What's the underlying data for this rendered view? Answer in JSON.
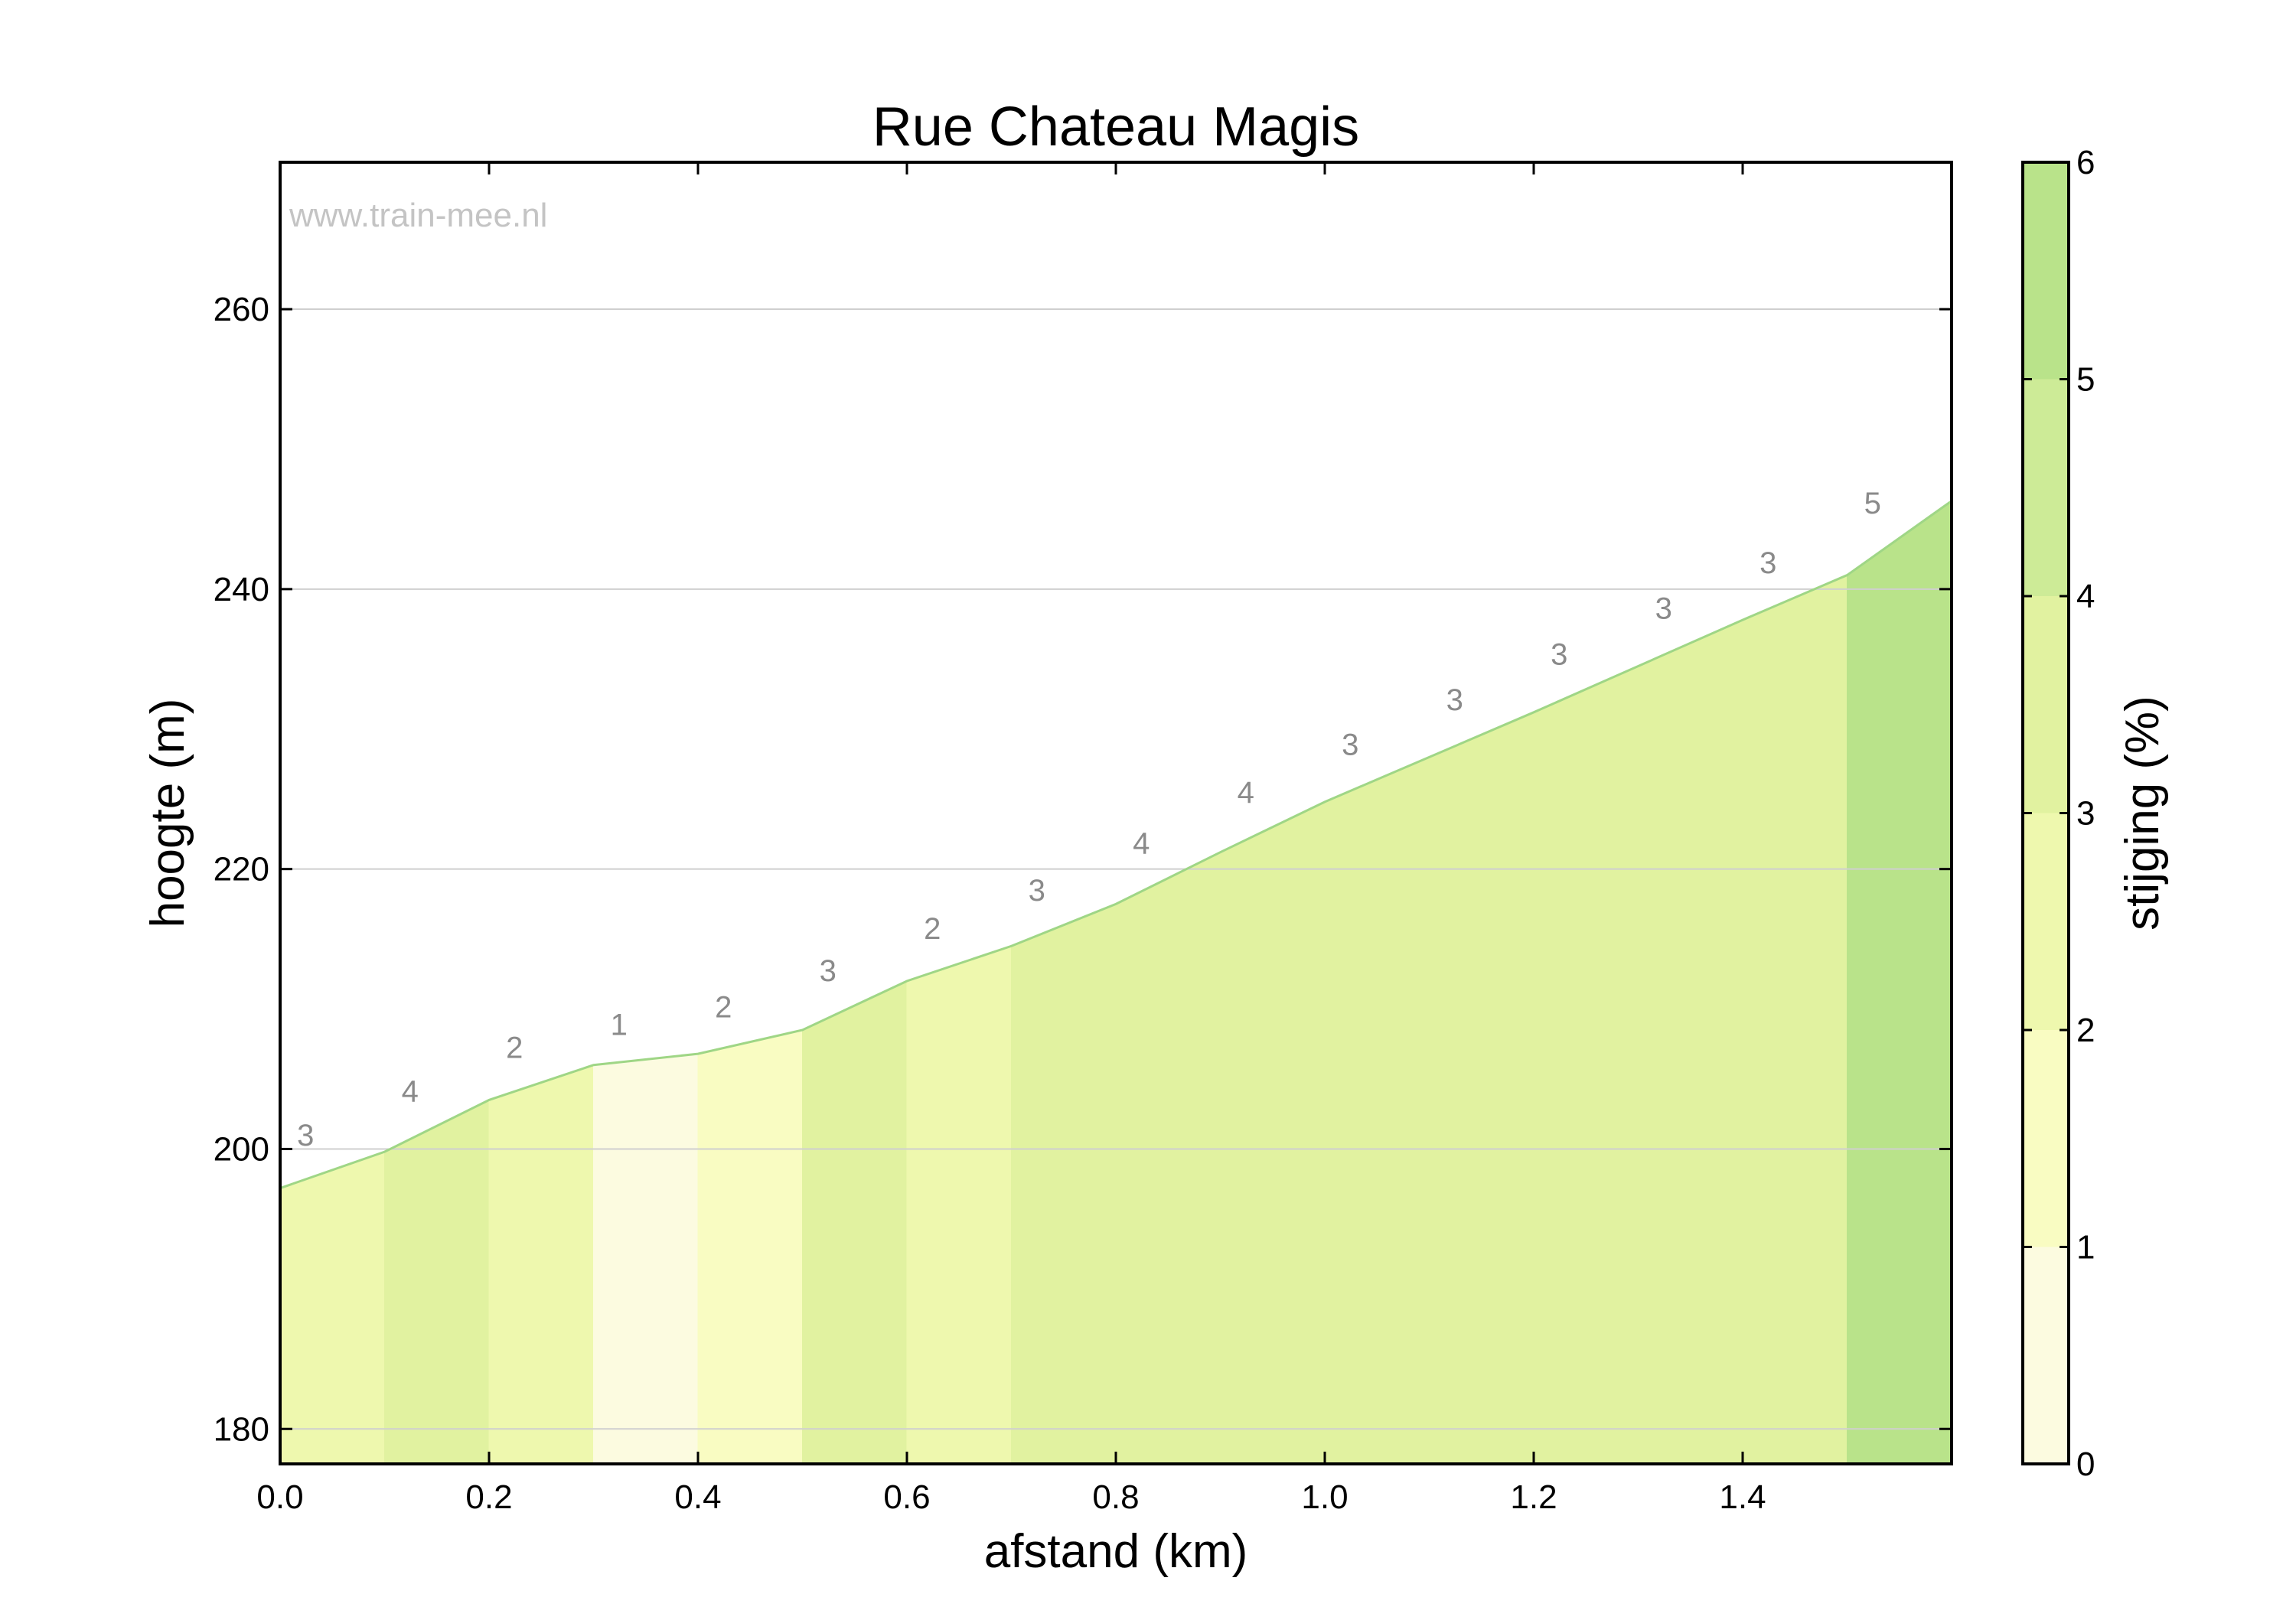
{
  "chart_data": {
    "type": "area",
    "title": "Rue Chateau Magis",
    "xlabel": "afstand (km)",
    "ylabel": "hoogte (m)",
    "xlim": [
      0,
      1.6
    ],
    "ylim": [
      177.5,
      270.5
    ],
    "x_ticks": [
      "0.0",
      "0.2",
      "0.4",
      "0.6",
      "0.8",
      "1.0",
      "1.2",
      "1.4"
    ],
    "y_ticks": [
      "180",
      "200",
      "220",
      "240",
      "260"
    ],
    "grid": "horizontal",
    "watermark": "www.train-mee.nl",
    "profile": {
      "x": [
        0.0,
        0.1,
        0.2,
        0.3,
        0.4,
        0.5,
        0.6,
        0.7,
        0.8,
        0.9,
        1.0,
        1.1,
        1.2,
        1.3,
        1.4,
        1.5,
        1.6
      ],
      "y": [
        197.2,
        199.8,
        203.5,
        206.0,
        206.8,
        208.5,
        212.0,
        214.5,
        217.5,
        221.2,
        224.8,
        228.0,
        231.2,
        234.5,
        237.8,
        241.0,
        246.3
      ]
    },
    "segments": [
      {
        "from": 0.0,
        "to": 0.1,
        "label": "3",
        "grade": 2.6
      },
      {
        "from": 0.1,
        "to": 0.2,
        "label": "4",
        "grade": 3.7
      },
      {
        "from": 0.2,
        "to": 0.3,
        "label": "2",
        "grade": 2.5
      },
      {
        "from": 0.3,
        "to": 0.4,
        "label": "1",
        "grade": 0.8
      },
      {
        "from": 0.4,
        "to": 0.5,
        "label": "2",
        "grade": 1.7
      },
      {
        "from": 0.5,
        "to": 0.6,
        "label": "3",
        "grade": 3.5
      },
      {
        "from": 0.6,
        "to": 0.7,
        "label": "2",
        "grade": 2.5
      },
      {
        "from": 0.7,
        "to": 0.8,
        "label": "3",
        "grade": 3.0
      },
      {
        "from": 0.8,
        "to": 0.9,
        "label": "4",
        "grade": 3.7
      },
      {
        "from": 0.9,
        "to": 1.0,
        "label": "4",
        "grade": 3.6
      },
      {
        "from": 1.0,
        "to": 1.1,
        "label": "3",
        "grade": 3.2
      },
      {
        "from": 1.1,
        "to": 1.2,
        "label": "3",
        "grade": 3.2
      },
      {
        "from": 1.2,
        "to": 1.3,
        "label": "3",
        "grade": 3.3
      },
      {
        "from": 1.3,
        "to": 1.4,
        "label": "3",
        "grade": 3.3
      },
      {
        "from": 1.4,
        "to": 1.5,
        "label": "3",
        "grade": 3.2
      },
      {
        "from": 1.5,
        "to": 1.6,
        "label": "5",
        "grade": 5.3
      }
    ],
    "colorbar": {
      "label": "stijging (%)",
      "range": [
        0,
        6
      ],
      "ticks": [
        "0",
        "1",
        "2",
        "3",
        "4",
        "5",
        "6"
      ],
      "colors": [
        "#fcfbe0",
        "#f9fcc2",
        "#eef8ae",
        "#e1f2a0",
        "#cdeb97",
        "#b9e38a"
      ]
    },
    "line_color": "#9fd686"
  }
}
